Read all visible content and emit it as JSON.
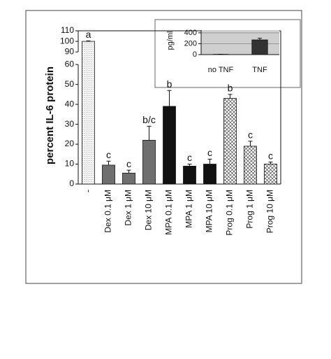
{
  "chart_data": [
    {
      "type": "bar",
      "ylabel": "percent IL-6 protein",
      "categories": [
        "-",
        "Dex 0.1 μM",
        "Dex 1 μM",
        "Dex 10 μM",
        "MPA 0.1 μM",
        "MPA 1 μM",
        "MPA 10 μM",
        "Prog 0.1 μM",
        "Prog 1 μM",
        "Prog 10 μM"
      ],
      "values": [
        100,
        9.5,
        5.5,
        22,
        39,
        9,
        10,
        43,
        19,
        10
      ],
      "errors": [
        0.5,
        2,
        1.5,
        7,
        8,
        1,
        2.5,
        2,
        2.5,
        1
      ],
      "annotations": [
        "a",
        "c",
        "c",
        "b/c",
        "b",
        "c",
        "c",
        "b",
        "c",
        "c"
      ],
      "colors": [
        "#f2f2f2",
        "#6f6f6f",
        "#6f6f6f",
        "#6f6f6f",
        "#111111",
        "#111111",
        "#111111",
        "#e8e8e8",
        "#e8e8e8",
        "#e8e8e8"
      ],
      "patterns": [
        "dots",
        "solid",
        "solid",
        "solid",
        "solid",
        "solid",
        "solid",
        "crosshatch",
        "crosshatch",
        "crosshatch"
      ],
      "ylim": [
        0,
        110
      ],
      "ybreak": [
        60,
        90
      ],
      "yticks": [
        0,
        10,
        20,
        30,
        40,
        50,
        60,
        90,
        100,
        110
      ]
    },
    {
      "type": "bar",
      "ylabel": "pg/ml",
      "categories": [
        "no TNF",
        "TNF"
      ],
      "values": [
        5,
        270
      ],
      "errors": [
        2,
        30
      ],
      "colors": [
        "#333333",
        "#333333"
      ],
      "patterns": [
        "solid",
        "solid"
      ],
      "ylim": [
        0,
        450
      ],
      "yticks": [
        0,
        200,
        400
      ],
      "grid": true
    }
  ]
}
